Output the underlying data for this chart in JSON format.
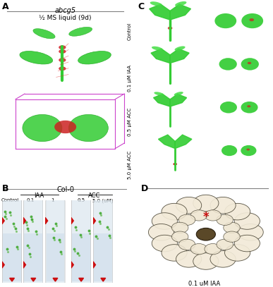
{
  "title_A": "A",
  "title_B": "B",
  "title_C": "C",
  "title_D": "D",
  "label_abcg5": "abcg5",
  "label_ms": "½ MS liquid (9d)",
  "label_col0": "Col-0",
  "label_iaa": "IAA",
  "label_acc": "ACC",
  "label_control": "Control",
  "label_0p1": "0.1",
  "label_1": "1",
  "label_0p5": "0.5",
  "label_5p0": "5.0 (uM)",
  "label_0p1_iaa": "0.1 uM IAA",
  "c_row_labels": [
    "Control",
    "0.1 μM IAA",
    "0.5 μM ACC",
    "5.0 μM ACC"
  ],
  "bg_black": "#000000",
  "bg_white": "#ffffff",
  "col_green": "#33cc33",
  "col_red": "#cc2222",
  "col_magenta": "#cc44cc",
  "panel_label_fontsize": 9,
  "text_fontsize": 7,
  "small_fontsize": 6
}
